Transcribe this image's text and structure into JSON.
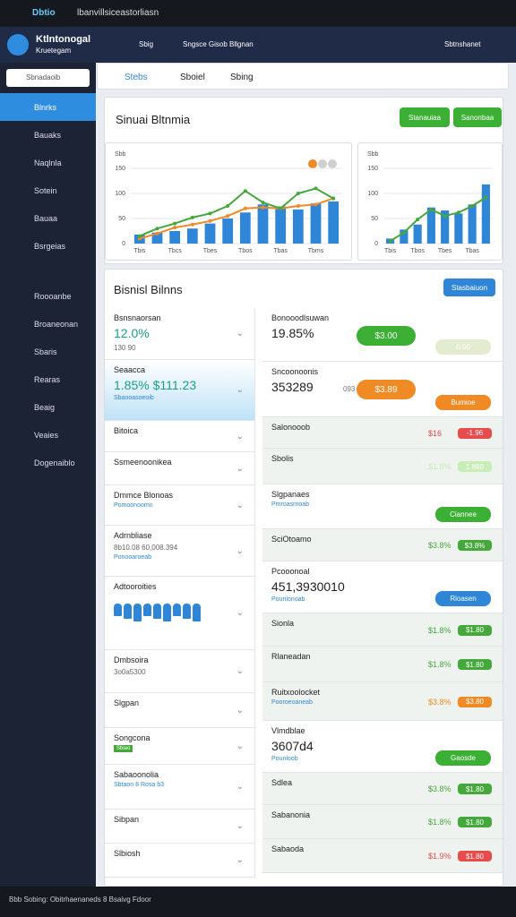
{
  "browser": {
    "tab": "Dbtio",
    "url": "lbanvillsiceastorliasn"
  },
  "header": {
    "brand": "Ktlntonogal",
    "brand_sub": "Kruetegam",
    "nav": [
      "Sbig",
      "Sngsce Gisob Bllgnan"
    ],
    "account": "Sbtnshanet"
  },
  "sidebar": {
    "search": "Sbnadaoib",
    "items": [
      "Blnrks",
      "Bauaks",
      "Naqlnla",
      "Sotein",
      "Bauaa",
      "Bsrgeias",
      "Roooanbe",
      "Broaneonan",
      "Sbaris",
      "Rearas",
      "Beaig",
      "Veaies",
      "Dogenaiblo"
    ]
  },
  "toolbar": {
    "tabs": [
      "Stebs",
      "Sboiel",
      "Sbing"
    ]
  },
  "overview": {
    "title": "Sinuai Bltnmia",
    "buttons": [
      "Stanauiaa",
      "Sanonbaa"
    ]
  },
  "chart_data": [
    {
      "type": "bar",
      "subtitle": "Sbb",
      "categories": [
        "Tbis",
        null,
        "Tbcs",
        null,
        "Tbes",
        null,
        "Tbos",
        null,
        "Tbas",
        null,
        "Tbms",
        null
      ],
      "series": [
        {
          "color": "#2f86d6",
          "values": [
            18,
            22,
            25,
            30,
            40,
            50,
            62,
            78,
            74,
            68,
            80,
            84
          ]
        },
        {
          "color": "#f08a24",
          "values": [
            10,
            20,
            32,
            38,
            45,
            55,
            70,
            72,
            70,
            75,
            78,
            90
          ]
        },
        {
          "color": "#45a83a",
          "values": [
            15,
            30,
            40,
            52,
            60,
            75,
            105,
            82,
            70,
            100,
            110,
            90
          ]
        }
      ],
      "legend_colors": [
        "#f08a24",
        "#cfcfcf",
        "#cfcfcf"
      ],
      "ylim": [
        0,
        150
      ],
      "yticks": [
        0,
        50,
        100,
        150
      ]
    },
    {
      "type": "bar",
      "subtitle": "Sbb",
      "categories": [
        "Tbis",
        null,
        "Tbos",
        null,
        "Tbes",
        null,
        "Tbas",
        null
      ],
      "series": [
        {
          "color": "#2f86d6",
          "values": [
            10,
            28,
            38,
            72,
            66,
            60,
            78,
            118
          ]
        },
        {
          "color": "#45a83a",
          "values": [
            5,
            22,
            48,
            68,
            55,
            62,
            75,
            92
          ]
        }
      ],
      "ylim": [
        0,
        150
      ],
      "yticks": [
        0,
        50,
        100,
        150
      ]
    }
  ],
  "details": {
    "title": "Bisnisl Bilnns",
    "button": "Stasbaiuon",
    "list": [
      {
        "title": "Bsnsnaorsan",
        "big": "12.0%",
        "mid": "130 90"
      },
      {
        "title": "Seaacca",
        "big": "1.85% $111.23",
        "sub": "Sbaooasoeoib",
        "highlight": true
      },
      {
        "title": "Bitoica"
      },
      {
        "title": "Ssmeenoonikea"
      },
      {
        "title": "Dmmce Blonoas",
        "sub": "Pomoonoomn"
      },
      {
        "title": "Adrnbliase",
        "mid": "8b10.08 60,008.394",
        "sub": "Ponooaroeab"
      },
      {
        "title": "Adtooroities",
        "people": true
      },
      {
        "title": "Dmbsoira",
        "mid": "3o0a5300"
      },
      {
        "title": "Slgpan"
      },
      {
        "title": "Songcona",
        "tag": "Sbiao",
        "tag_color": "#45a83a"
      },
      {
        "title": "Sabaoonolia",
        "sub": "Sbtaon 8 Rosa b3"
      },
      {
        "title": "Sibpan"
      },
      {
        "title": "Slbiosh"
      }
    ],
    "rows": [
      {
        "title": "Bonooodlsuwan",
        "big": "19.85%",
        "btn": "$3.00",
        "btn_color": "#3cb034",
        "btn2": "0.00",
        "btn2_color": "#e4ecd0"
      },
      {
        "title": "Sncoonoonis",
        "big": "353289",
        "mid": "093",
        "btn": "$3.89",
        "btn_color": "#f08a24",
        "btn2": "Bumioe",
        "btn2_color": "#f08a24"
      },
      {
        "title": "Salonooob",
        "shaded": true,
        "val": "$16",
        "tag": "-1.96",
        "tag_color": "#e84b4b"
      },
      {
        "title": "Sbolis",
        "shaded": true,
        "val": "$1.8%",
        "tag": "1.880",
        "tag_color": "#c8eeb8"
      },
      {
        "title": "Slgpanaes",
        "sub": "Pmroasrnoab",
        "btn2": "Ciannee",
        "btn2_color": "#3cb034"
      },
      {
        "title": "SciOtoamo",
        "shaded": true,
        "val": "$3.8%",
        "tag": "$3.8%",
        "tag_color": "#45a83a"
      },
      {
        "title": "Pcooonoal",
        "big": "451,3930010",
        "sub": "Pounlonoab",
        "btn2": "Rioasen",
        "btn2_color": "#2f86d6"
      },
      {
        "title": "Sionla",
        "shaded": true,
        "val": "$1.8%",
        "tag": "$1.80",
        "tag_color": "#45a83a"
      },
      {
        "title": "Rlaneadan",
        "shaded": true,
        "val": "$1.8%",
        "tag": "$1.80",
        "tag_color": "#45a83a"
      },
      {
        "title": "Ruitxoolocket",
        "shaded": true,
        "sub": "Pooroeoaneab",
        "val": "$3.8%",
        "tag": "$3.80",
        "tag_color": "#f08a24"
      },
      {
        "title": "Vlmdblae",
        "big": "3607d4",
        "sub": "Pounloob",
        "btn2": "Gaosde",
        "btn2_color": "#3cb034"
      },
      {
        "title": "Sdlea",
        "shaded": true,
        "val": "$3.8%",
        "tag": "$1.80",
        "tag_color": "#45a83a"
      },
      {
        "title": "Sabanonia",
        "shaded": true,
        "val": "$1.8%",
        "tag": "$1.80",
        "tag_color": "#45a83a"
      },
      {
        "title": "Sabaoda",
        "shaded": true,
        "val": "$1.9%",
        "tag": "$1.80",
        "tag_color": "#e84b4b"
      }
    ]
  },
  "footer": {
    "text": "Bbb Sobing: Obitrhaenaneds 8 Bsaivg Fdoor"
  }
}
